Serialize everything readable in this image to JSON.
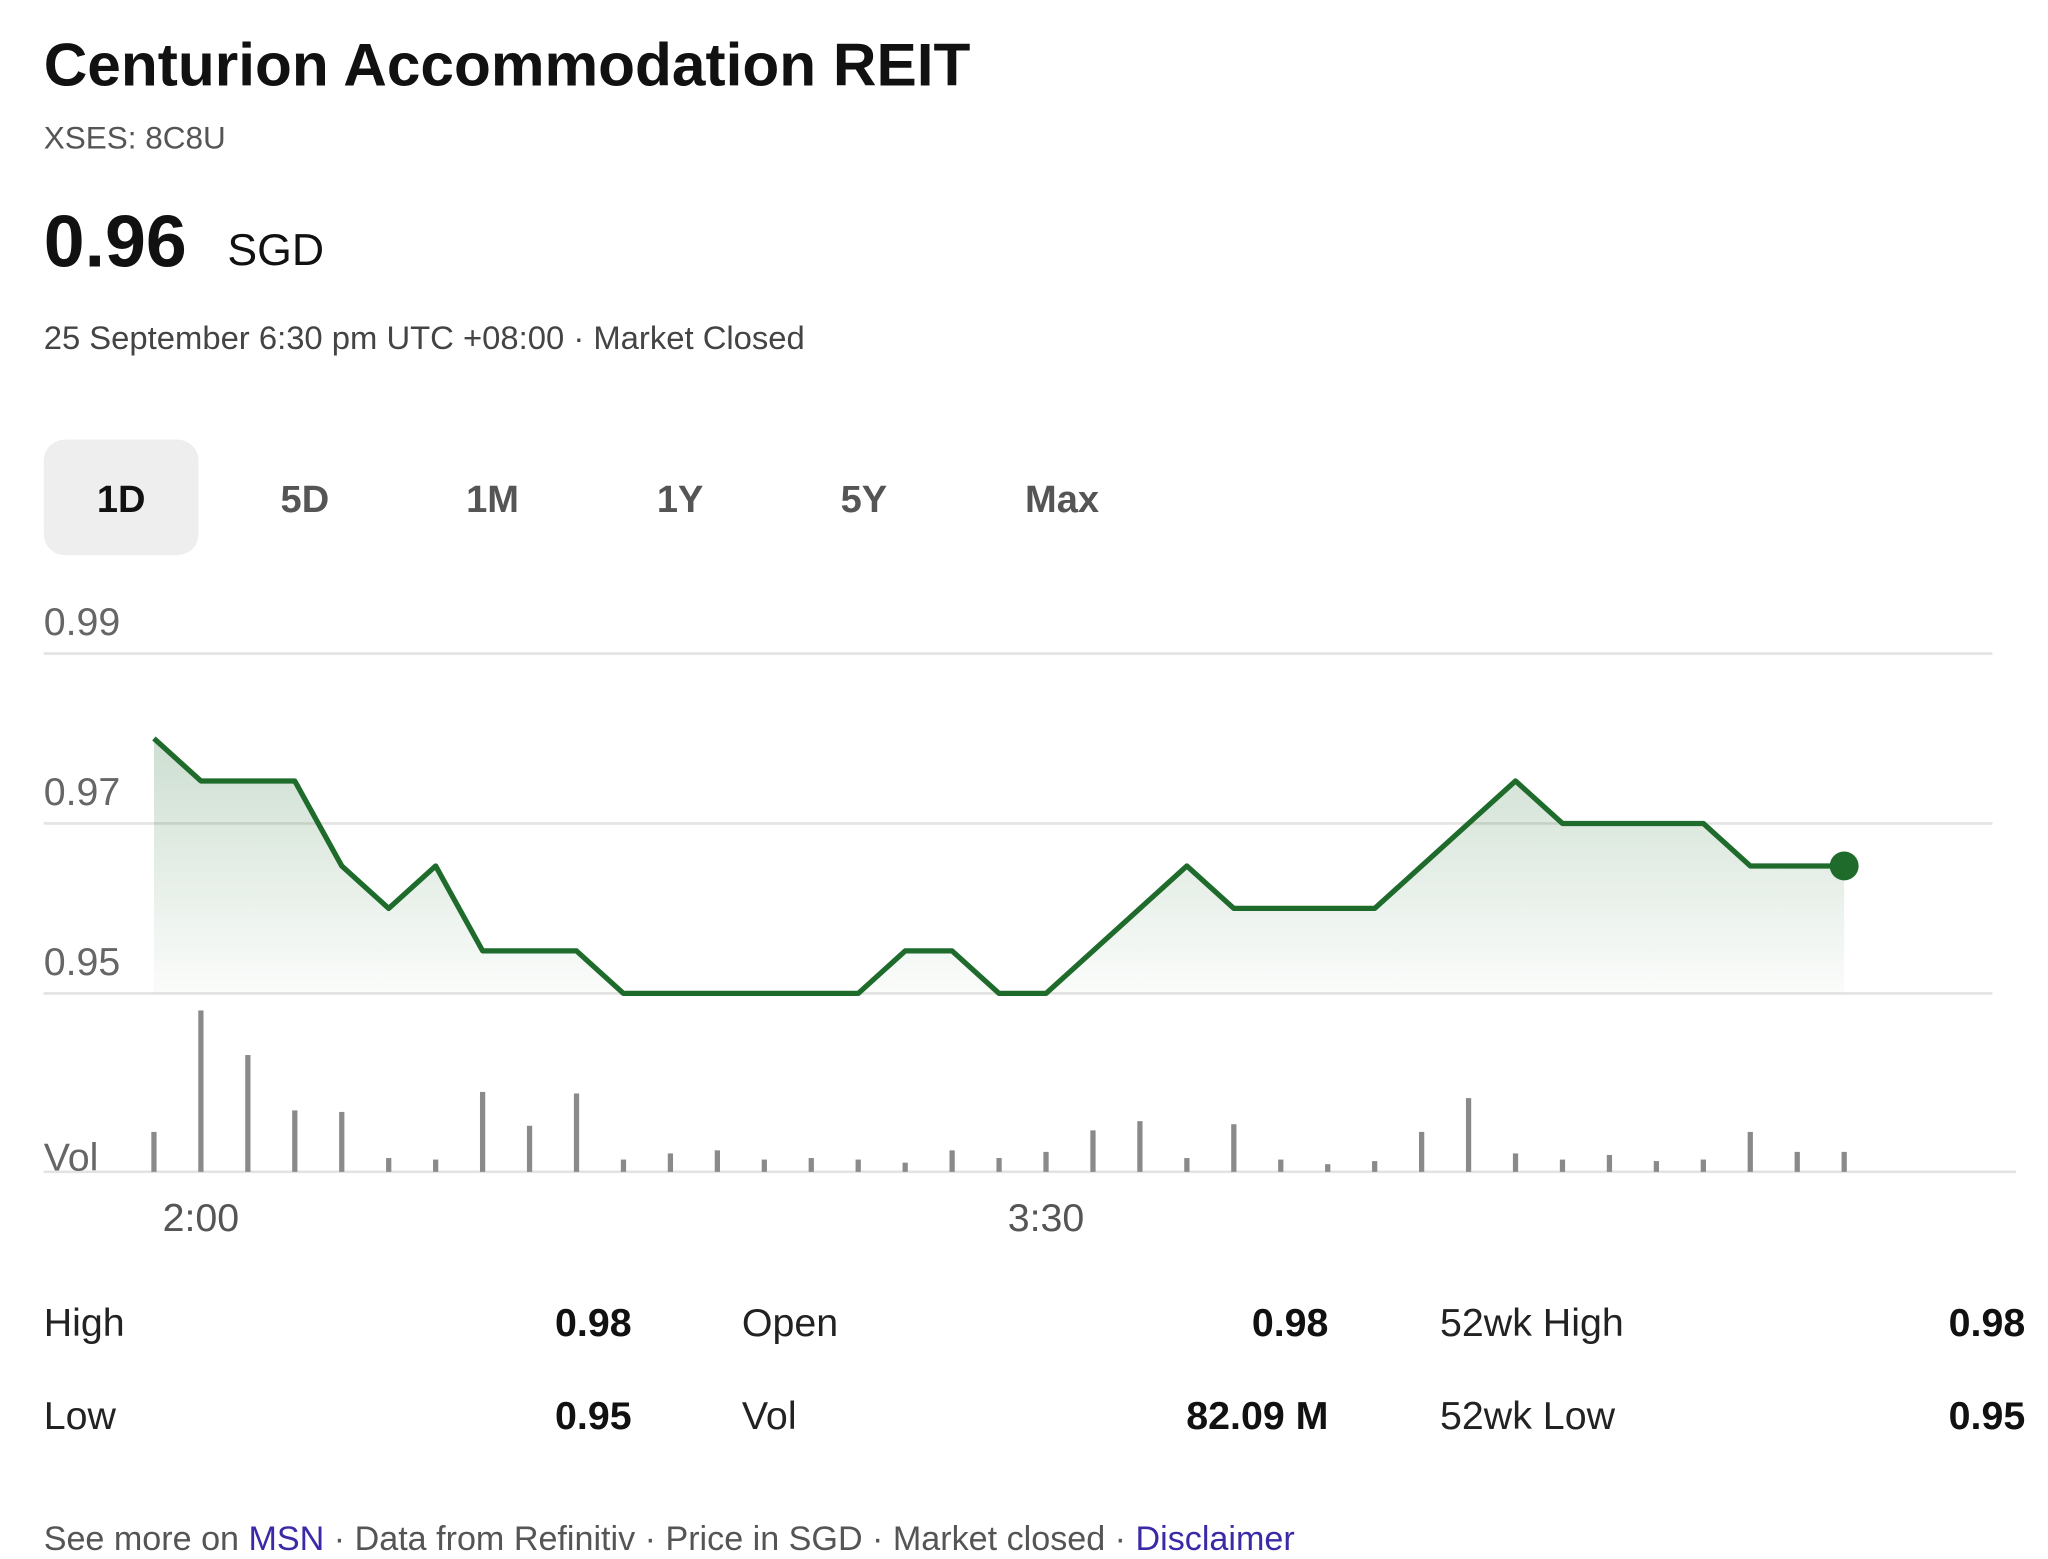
{
  "header": {
    "title": "Centurion Accommodation REIT",
    "ticker": "XSES: 8C8U",
    "price": "0.96",
    "currency": "SGD",
    "status": "25 September 6:30 pm UTC +08:00 · Market Closed"
  },
  "tabs": [
    "1D",
    "5D",
    "1M",
    "1Y",
    "5Y",
    "Max"
  ],
  "chart_data": {
    "type": "line",
    "categories": [
      null,
      "2:00",
      null,
      null,
      null,
      null,
      null,
      null,
      null,
      null,
      null,
      null,
      null,
      null,
      null,
      null,
      null,
      null,
      null,
      "3:30",
      null,
      null,
      null,
      null,
      null,
      null,
      null,
      null,
      null,
      null,
      null,
      null,
      null,
      null,
      null,
      null,
      null
    ],
    "series": [
      {
        "color": "#1e6b2c",
        "values": [
          0.98,
          0.975,
          0.975,
          0.975,
          0.965,
          0.96,
          0.965,
          0.955,
          0.955,
          0.955,
          0.95,
          0.95,
          0.95,
          0.95,
          0.95,
          0.95,
          0.955,
          0.955,
          0.95,
          0.95,
          0.955,
          0.96,
          0.965,
          0.96,
          0.96,
          0.96,
          0.96,
          0.965,
          0.97,
          0.975,
          0.97,
          0.97,
          0.97,
          0.97,
          0.965,
          0.965,
          0.965
        ]
      }
    ],
    "volume": {
      "name": "Vol",
      "color": "#8a8a8a",
      "values": [
        2.6,
        10.5,
        7.6,
        4.0,
        3.9,
        0.9,
        0.8,
        5.2,
        3.0,
        5.1,
        0.8,
        1.2,
        1.4,
        0.8,
        0.9,
        0.8,
        0.6,
        1.4,
        0.9,
        1.3,
        2.7,
        3.3,
        0.9,
        3.1,
        0.8,
        0.5,
        0.7,
        2.6,
        4.8,
        1.2,
        0.8,
        1.1,
        0.7,
        0.8,
        2.6,
        1.3,
        1.3
      ]
    },
    "ylim": [
      0.95,
      0.99
    ],
    "yticks": [
      0.95,
      0.97,
      0.99
    ],
    "grid": true
  },
  "stats": [
    [
      {
        "label": "High",
        "value": "0.98"
      },
      {
        "label": "Open",
        "value": "0.98"
      },
      {
        "label": "52wk High",
        "value": "0.98"
      }
    ],
    [
      {
        "label": "Low",
        "value": "0.95"
      },
      {
        "label": "Vol",
        "value": "82.09 M"
      },
      {
        "label": "52wk Low",
        "value": "0.95"
      }
    ]
  ],
  "footer": {
    "prefix": "See more on ",
    "link": "MSN",
    "middle": " · Data from Refinitiv · Price in SGD · Market closed · ",
    "disclaimer": "Disclaimer"
  }
}
